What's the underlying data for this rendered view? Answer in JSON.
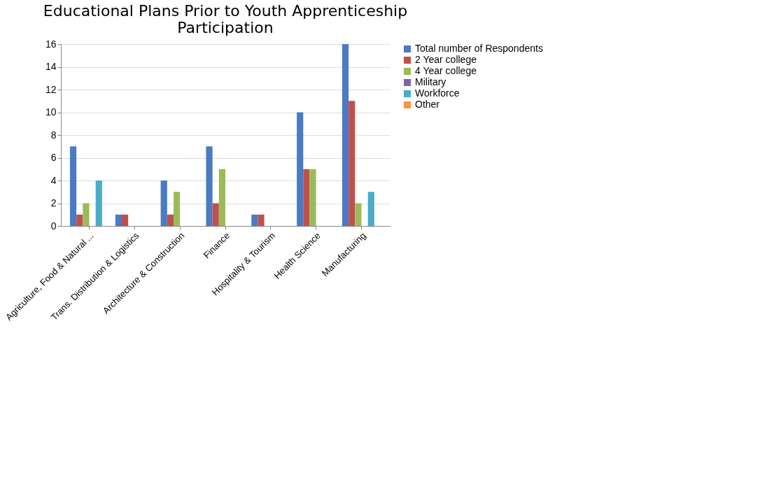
{
  "chart_data": {
    "type": "bar",
    "title": [
      "Educational Plans Prior to Youth Apprenticeship",
      "Participation"
    ],
    "categories": [
      "Agriculture, Food & Natural ...",
      "Trans. Distribution & Logistics",
      "Architecture & Construction",
      "Finance",
      "Hospitality & Tourism",
      "Health Science",
      "Manufacturing"
    ],
    "series": [
      {
        "name": "Total number of Respondents",
        "color": "#4a7bc4",
        "values": [
          7,
          1,
          4,
          7,
          1,
          10,
          16
        ]
      },
      {
        "name": "2 Year college",
        "color": "#c0504d",
        "values": [
          1,
          1,
          1,
          2,
          1,
          5,
          11
        ]
      },
      {
        "name": "4 Year college",
        "color": "#9bbb59",
        "values": [
          2,
          0,
          3,
          5,
          0,
          5,
          2
        ]
      },
      {
        "name": "Military",
        "color": "#8064a2",
        "values": [
          0,
          0,
          0,
          0,
          0,
          0,
          0
        ]
      },
      {
        "name": "Workforce",
        "color": "#4bacc6",
        "values": [
          4,
          0,
          0,
          0,
          0,
          0,
          3
        ]
      },
      {
        "name": "Other",
        "color": "#f79646",
        "values": [
          0,
          0,
          0,
          0,
          0,
          0,
          0
        ]
      }
    ],
    "ylim": [
      0,
      16
    ],
    "yticks": [
      0,
      2,
      4,
      6,
      8,
      10,
      12,
      14,
      16
    ],
    "grid": "y",
    "legend": "right"
  }
}
